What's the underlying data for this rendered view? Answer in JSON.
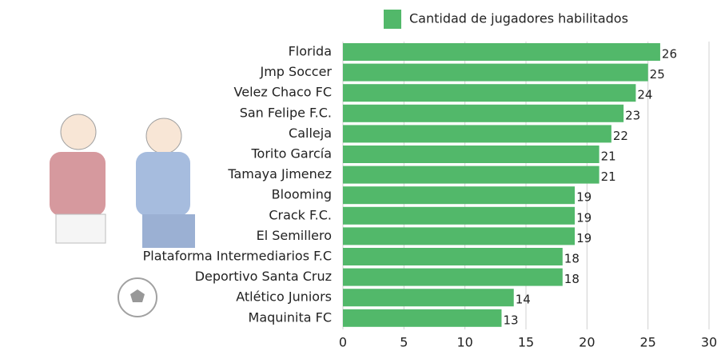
{
  "chart_data": {
    "type": "bar",
    "orientation": "horizontal",
    "categories": [
      "Florida",
      "Jmp Soccer",
      "Velez Chaco FC",
      "San Felipe F.C.",
      "Calleja",
      "Torito García",
      "Tamaya Jimenez",
      "Blooming",
      "Crack F.C.",
      "El Semillero",
      "Plataforma Intermediarios F.C",
      "Deportivo Santa Cruz",
      "Atlético Juniors",
      "Maquinita FC"
    ],
    "series": [
      {
        "name": "Cantidad de jugadores habilitados",
        "color": "#52b86a",
        "values": [
          26,
          25,
          24,
          23,
          22,
          21,
          21,
          19,
          19,
          19,
          18,
          18,
          14,
          13
        ]
      }
    ],
    "xlim": [
      0,
      30
    ],
    "xticks": [
      0,
      5,
      10,
      15,
      20,
      25,
      30
    ],
    "grid": true,
    "legend_position": "top"
  }
}
